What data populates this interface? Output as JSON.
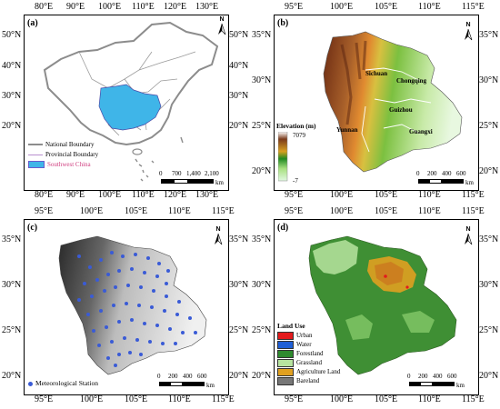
{
  "panels": {
    "a": {
      "label": "(a)",
      "top_ticks": [
        "80°E",
        "90°E",
        "100°E",
        "110°E",
        "120°E",
        "130°E"
      ],
      "bottom_ticks": [
        "80°E",
        "90°E",
        "100°E",
        "110°E",
        "120°E",
        "130°E"
      ],
      "left_ticks": [
        "50°N",
        "40°N",
        "30°N",
        "20°N"
      ],
      "right_ticks": [
        "50°N",
        "40°N",
        "30°N",
        "20°N"
      ],
      "legend": [
        {
          "label": "National Boundary",
          "color": "#8c8c8c"
        },
        {
          "label": "Provincial Boundary",
          "color": "#b98fd0"
        },
        {
          "label": "Southwest China",
          "color": "#3fb5e8"
        }
      ],
      "scale_labels": [
        "0",
        "700",
        "1,400",
        "2,100"
      ],
      "scale_unit": "km"
    },
    "b": {
      "label": "(b)",
      "top_ticks": [
        "95°E",
        "100°E",
        "105°E",
        "110°E",
        "115°E"
      ],
      "bottom_ticks": [
        "95°E",
        "100°E",
        "105°E",
        "110°E",
        "115°E"
      ],
      "left_ticks": [
        "35°N",
        "30°N",
        "25°N",
        "20°N"
      ],
      "right_ticks": [
        "35°N",
        "30°N",
        "25°N",
        "20°N"
      ],
      "regions": [
        "Sichuan",
        "Chongqing",
        "Guizhou",
        "Yunnan",
        "Guangxi"
      ],
      "legend_title": "Elevation (m)",
      "elev_max": "7079",
      "elev_min": "-7",
      "scale_labels": [
        "0",
        "200",
        "400",
        "600"
      ],
      "scale_unit": "km"
    },
    "c": {
      "label": "(c)",
      "top_ticks": [
        "95°E",
        "100°E",
        "105°E",
        "110°E",
        "115°E"
      ],
      "bottom_ticks": [
        "95°E",
        "100°E",
        "105°E",
        "110°E",
        "115°E"
      ],
      "left_ticks": [
        "35°N",
        "30°N",
        "25°N",
        "20°N"
      ],
      "right_ticks": [
        "35°N",
        "30°N",
        "25°N",
        "20°N"
      ],
      "legend": [
        {
          "label": "Meteorological Station",
          "color": "#3a5bd6"
        }
      ],
      "scale_labels": [
        "0",
        "200",
        "400",
        "600"
      ],
      "scale_unit": "km"
    },
    "d": {
      "label": "(d)",
      "top_ticks": [
        "95°E",
        "100°E",
        "105°E",
        "110°E",
        "115°E"
      ],
      "bottom_ticks": [
        "95°E",
        "100°E",
        "105°E",
        "110°E",
        "115°E"
      ],
      "left_ticks": [
        "35°N",
        "30°N",
        "25°N",
        "20°N"
      ],
      "right_ticks": [
        "35°N",
        "30°N",
        "25°N",
        "20°N"
      ],
      "legend_title": "Land Use",
      "legend": [
        {
          "label": "Urban",
          "color": "#e31a1c"
        },
        {
          "label": "Water",
          "color": "#1f5fd6"
        },
        {
          "label": "Forestland",
          "color": "#2e8b2e"
        },
        {
          "label": "Grassland",
          "color": "#b7e4a0"
        },
        {
          "label": "Agriculture Land",
          "color": "#e0a020"
        },
        {
          "label": "Bareland",
          "color": "#777777"
        }
      ],
      "scale_labels": [
        "0",
        "200",
        "400",
        "600"
      ],
      "scale_unit": "km"
    }
  },
  "north_letter": "N"
}
